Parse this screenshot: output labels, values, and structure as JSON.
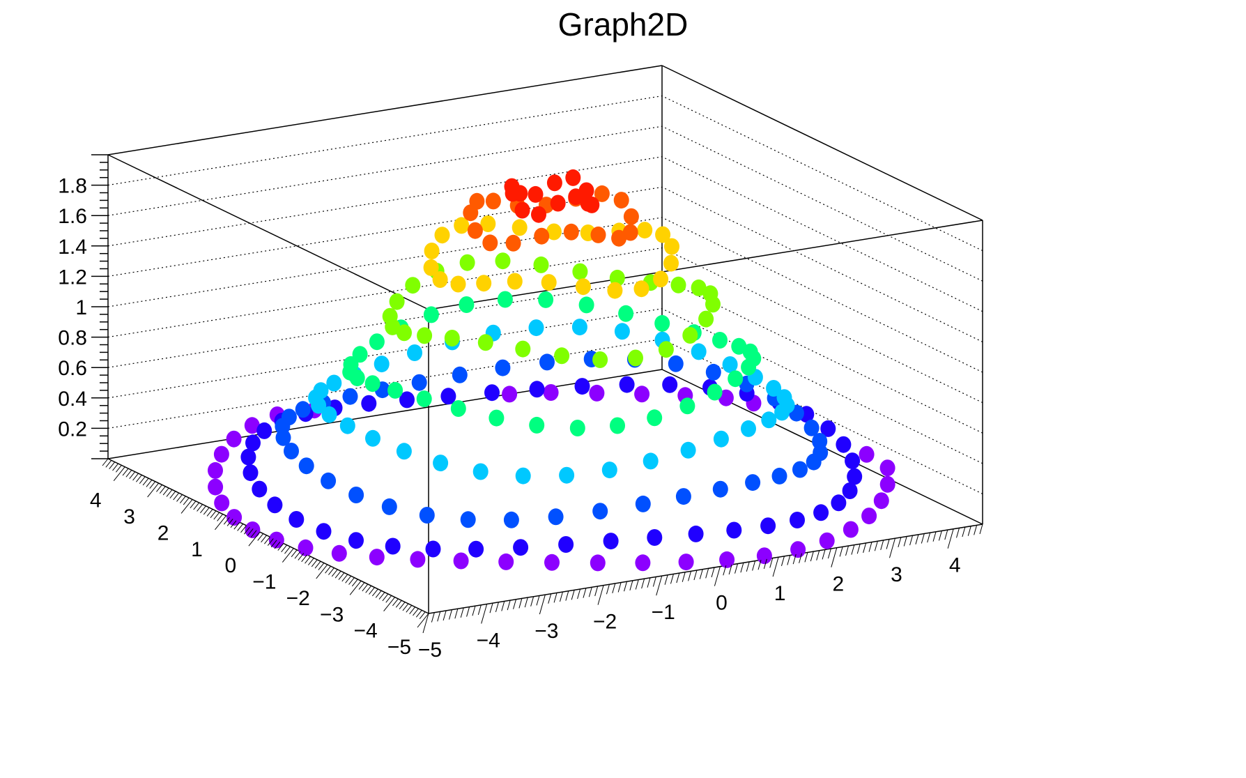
{
  "chart_data": {
    "type": "scatter",
    "subtype": "scatter3d (TGraph2D, pcol markers)",
    "title": "Graph2D",
    "xlabel": "",
    "ylabel": "",
    "zlabel": "",
    "x_range": [
      -5,
      4.5
    ],
    "y_range": [
      -5,
      4.5
    ],
    "z_range": [
      0,
      2.0
    ],
    "x_ticks": [
      "-5",
      "-4",
      "-3",
      "-2",
      "-1",
      "0",
      "1",
      "2",
      "3",
      "4"
    ],
    "y_ticks": [
      "-5",
      "-4",
      "-3",
      "-2",
      "-1",
      "0",
      "1",
      "2",
      "3",
      "4"
    ],
    "z_ticks": [
      "0.2",
      "0.4",
      "0.6",
      "0.8",
      "1",
      "1.2",
      "1.4",
      "1.6",
      "1.8"
    ],
    "grid": true,
    "legend": null,
    "colormap": "rainbow (violet=low z, red=high z)",
    "description": "Concentric rings of points forming a sombrero-like surface: z peaks near 1.9 at the center ring (red), falls to ~0.05 on the outer rings (violet), with intermediate rings in yellow/green/cyan/blue.",
    "rings": [
      {
        "radius": 0.6,
        "z": 1.9,
        "color": "#ff1a00"
      },
      {
        "radius": 1.2,
        "z": 1.75,
        "color": "#ff5a00"
      },
      {
        "radius": 1.8,
        "z": 1.5,
        "color": "#ffd200"
      },
      {
        "radius": 2.4,
        "z": 1.15,
        "color": "#80ff00"
      },
      {
        "radius": 3.0,
        "z": 0.8,
        "color": "#00ff80"
      },
      {
        "radius": 3.5,
        "z": 0.55,
        "color": "#00c8ff"
      },
      {
        "radius": 4.0,
        "z": 0.3,
        "color": "#0050ff"
      },
      {
        "radius": 4.5,
        "z": 0.12,
        "color": "#2000ff"
      },
      {
        "radius": 5.0,
        "z": 0.05,
        "color": "#8c00ff"
      }
    ]
  }
}
